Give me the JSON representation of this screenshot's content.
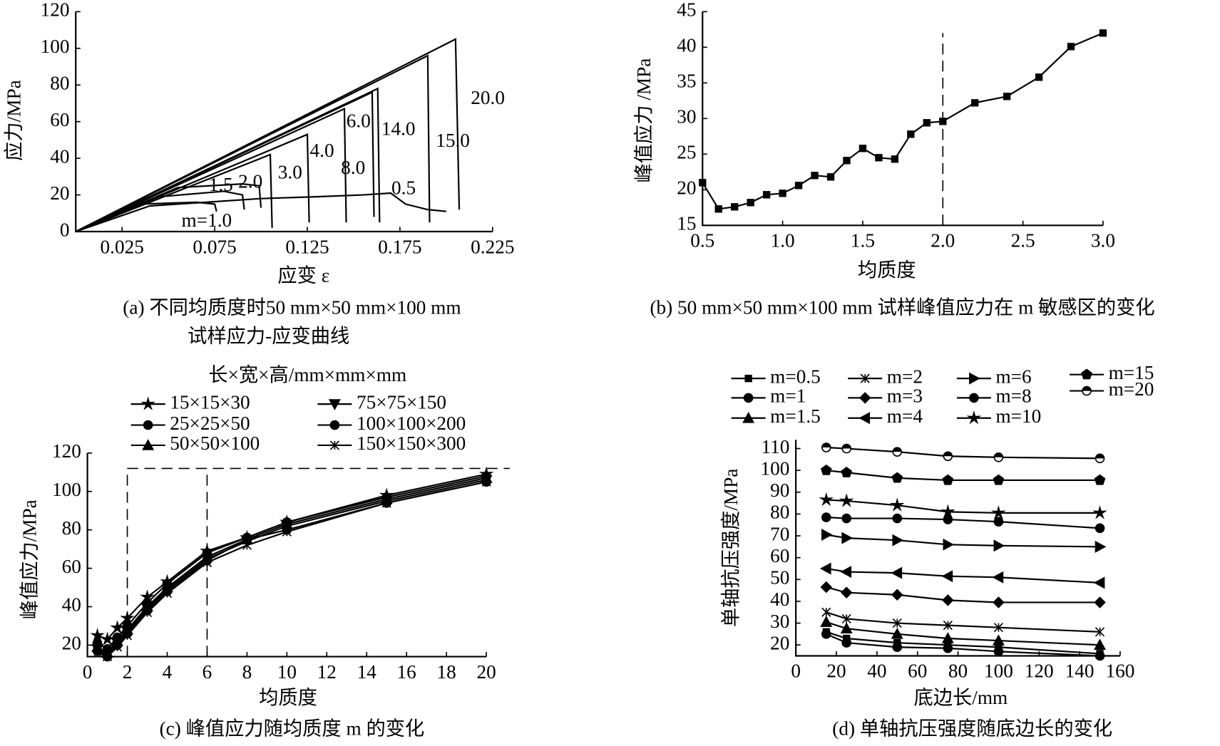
{
  "chart_data": [
    {
      "type": "line",
      "color": "#000",
      "y_label": "应力/MPa",
      "x_label": "应变 ε",
      "caption": [
        "(a) 不同均质度时50 mm×50 mm×100 mm",
        "试样应力-应变曲线"
      ],
      "xlim": [
        0,
        0.225
      ],
      "xticks": [
        0.025,
        0.075,
        0.125,
        0.175,
        0.225
      ],
      "ylim": [
        0,
        120
      ],
      "yticks": [
        0,
        20,
        40,
        60,
        80,
        100,
        120
      ],
      "annotations": [
        "20.0",
        "15.0",
        "14.0",
        "6.0",
        "8.0",
        "4.0",
        "3.0",
        "2.0",
        "1.5",
        "0.5",
        "m=1.0"
      ],
      "series": [
        {
          "x": [
            0,
            0.04,
            0.07,
            0.1,
            0.13,
            0.155,
            0.17,
            0.178,
            0.19,
            0.2
          ],
          "values": [
            0,
            14,
            16,
            18,
            19,
            20,
            21,
            15,
            12,
            11
          ]
        },
        {
          "x": [
            0,
            0.035,
            0.065,
            0.075,
            0.076
          ],
          "values": [
            0,
            15,
            16,
            15,
            11
          ]
        },
        {
          "x": [
            0,
            0.045,
            0.08,
            0.09,
            0.091
          ],
          "values": [
            0,
            19,
            22,
            20,
            12
          ]
        },
        {
          "x": [
            0,
            0.055,
            0.09,
            0.099,
            0.1
          ],
          "values": [
            0,
            24,
            26,
            25,
            13
          ]
        },
        {
          "x": [
            0,
            0.105,
            0.106
          ],
          "values": [
            0,
            42,
            2
          ]
        },
        {
          "x": [
            0,
            0.125,
            0.126
          ],
          "values": [
            0,
            53,
            5
          ]
        },
        {
          "x": [
            0,
            0.145,
            0.146
          ],
          "values": [
            0,
            67,
            5
          ]
        },
        {
          "x": [
            0,
            0.16,
            0.161
          ],
          "values": [
            0,
            76,
            8
          ]
        },
        {
          "x": [
            0,
            0.163,
            0.164
          ],
          "values": [
            0,
            78,
            5
          ]
        },
        {
          "x": [
            0,
            0.19,
            0.191
          ],
          "values": [
            0,
            96,
            5
          ]
        },
        {
          "x": [
            0,
            0.205,
            0.207
          ],
          "values": [
            0,
            105,
            12
          ]
        }
      ]
    },
    {
      "type": "line",
      "color": "#000",
      "marker": "square",
      "y_label": "峰值应力 /MPa",
      "x_label": "均质度",
      "caption": [
        "(b) 50 mm×50 mm×100 mm 试样峰值应力在 m 敏感区的变化"
      ],
      "xlim": [
        0.5,
        3
      ],
      "xticks": [
        0.5,
        {
          "value": 1,
          "label": "1.0"
        },
        1.5,
        {
          "value": 2,
          "label": "2.0"
        },
        2.5,
        {
          "value": 3,
          "label": "3.0"
        }
      ],
      "ylim": [
        15,
        45
      ],
      "yticks": [
        15,
        20,
        25,
        30,
        35,
        40,
        45
      ],
      "vlines": [
        2
      ],
      "x": [
        0.5,
        0.6,
        0.7,
        0.8,
        0.9,
        1.0,
        1.1,
        1.2,
        1.3,
        1.4,
        1.5,
        1.6,
        1.7,
        1.8,
        1.9,
        2.0,
        2.2,
        2.4,
        2.6,
        2.8,
        3.0
      ],
      "series": [
        {
          "values": [
            21,
            17.3,
            17.6,
            18.2,
            19.3,
            19.5,
            20.6,
            22,
            21.8,
            24.1,
            25.8,
            24.5,
            24.3,
            27.8,
            29.4,
            29.6,
            32.2,
            33.1,
            35.8,
            40.1,
            42
          ]
        }
      ]
    },
    {
      "type": "line",
      "color": "#000",
      "y_label": "峰值应力/MPa",
      "x_label": "均质度",
      "caption": [
        "(c) 峰值应力随均质度 m 的变化"
      ],
      "legend_title": "长×宽×高/mm×mm×mm",
      "xlim": [
        0,
        20
      ],
      "xticks": [
        0,
        2,
        4,
        6,
        8,
        10,
        12,
        14,
        16,
        18,
        20
      ],
      "ylim": [
        14,
        120
      ],
      "yticks": [
        20,
        40,
        60,
        80,
        100,
        120
      ],
      "hline": 112,
      "vlines": [
        2,
        6
      ],
      "x": [
        0.5,
        1,
        1.5,
        2,
        3,
        4,
        6,
        8,
        10,
        15,
        20
      ],
      "series": [
        {
          "name": "15×15×30",
          "marker": "star",
          "values": [
            25,
            23,
            29,
            34,
            45,
            53,
            69,
            76,
            84,
            98,
            109
          ]
        },
        {
          "name": "25×25×50",
          "marker": "circle",
          "values": [
            21,
            18,
            24,
            30,
            42,
            52,
            68,
            76,
            84,
            97,
            108
          ]
        },
        {
          "name": "50×50×100",
          "marker": "triangle",
          "values": [
            19,
            16,
            22,
            28,
            40,
            50,
            66,
            75,
            83,
            96,
            107
          ]
        },
        {
          "name": "75×75×150",
          "marker": "triangle-down",
          "values": [
            18,
            15,
            21,
            27,
            39,
            49,
            65,
            74,
            82,
            95,
            106
          ]
        },
        {
          "name": "100×100×200",
          "marker": "circle",
          "values": [
            17,
            14,
            20,
            26,
            38,
            48,
            64,
            75,
            80,
            94,
            105
          ]
        },
        {
          "name": "150×150×300",
          "marker": "x",
          "values": [
            16,
            14,
            19,
            25,
            37,
            47,
            63,
            72,
            79,
            94,
            105
          ]
        }
      ]
    },
    {
      "type": "line",
      "color": "#000",
      "y_label": "单轴抗压强度/MPa",
      "x_label": "底边长/mm",
      "caption": [
        "(d) 单轴抗压强度随底边长的变化"
      ],
      "xlim": [
        0,
        160
      ],
      "xticks": [
        0,
        20,
        40,
        60,
        80,
        100,
        120,
        140,
        160
      ],
      "ylim": [
        15,
        114
      ],
      "yticks": [
        20,
        30,
        40,
        50,
        60,
        70,
        80,
        90,
        100,
        110
      ],
      "x": [
        15,
        25,
        50,
        75,
        100,
        150
      ],
      "series": [
        {
          "name": "m=0.5",
          "marker": "square",
          "values": [
            26,
            23,
            21,
            20,
            19,
            16
          ]
        },
        {
          "name": "m=1",
          "marker": "circle",
          "values": [
            25,
            21,
            19,
            18.5,
            17,
            15
          ]
        },
        {
          "name": "m=1.5",
          "marker": "triangle",
          "values": [
            30.5,
            27.5,
            25,
            23,
            22,
            20
          ]
        },
        {
          "name": "m=2",
          "marker": "x",
          "values": [
            35,
            32,
            30,
            29,
            28,
            26
          ]
        },
        {
          "name": "m=3",
          "marker": "diamond",
          "values": [
            46.5,
            44,
            43,
            40.5,
            39.5,
            39.5
          ]
        },
        {
          "name": "m=4",
          "marker": "triangle-left",
          "values": [
            55,
            53.5,
            53,
            51.5,
            51,
            48.5
          ]
        },
        {
          "name": "m=6",
          "marker": "triangle-right",
          "values": [
            70.5,
            69,
            68,
            66,
            65.5,
            65
          ]
        },
        {
          "name": "m=8",
          "marker": "circle",
          "values": [
            78.5,
            78,
            78,
            77.5,
            76.5,
            73.5
          ]
        },
        {
          "name": "m=10",
          "marker": "star",
          "values": [
            86.5,
            86,
            84,
            81,
            80.5,
            80.5
          ]
        },
        {
          "name": "m=15",
          "marker": "pentagon",
          "values": [
            100,
            99,
            96.5,
            95.5,
            95.5,
            95.5
          ]
        },
        {
          "name": "m=20",
          "marker": "half-circle",
          "values": [
            110.5,
            110,
            108.5,
            106.5,
            106,
            105.5
          ]
        }
      ]
    }
  ]
}
